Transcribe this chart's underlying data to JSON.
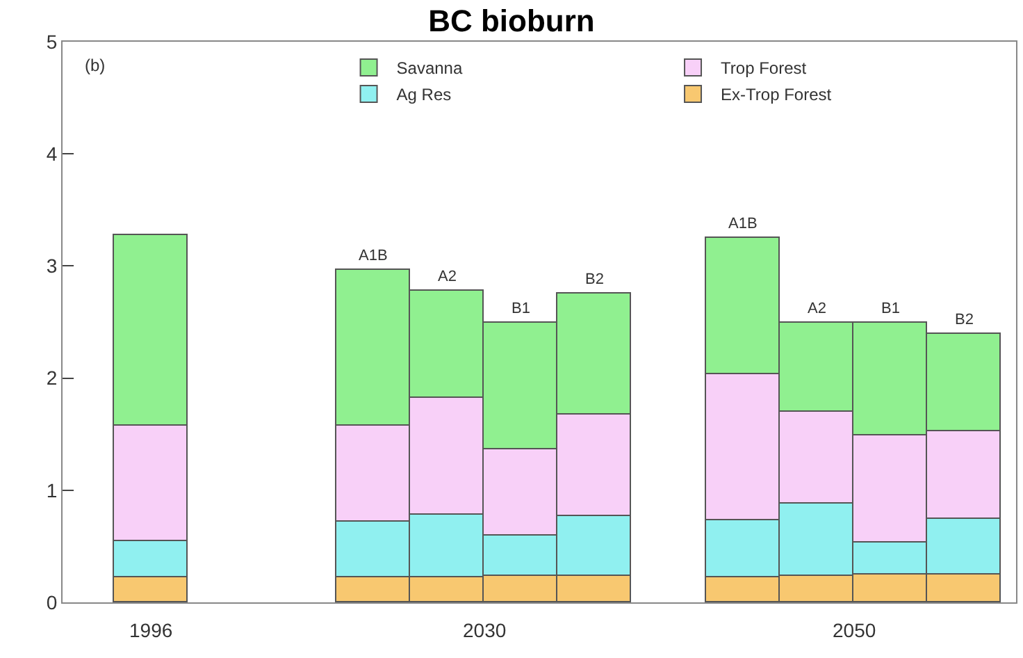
{
  "chart_data": {
    "type": "bar",
    "title": "BC bioburn",
    "stacked": true,
    "categories": [
      null,
      null,
      null,
      "A1B",
      "A2",
      "B1",
      "B2",
      null,
      "A1B",
      "A2",
      "B1",
      "B2"
    ],
    "series": [
      {
        "name": "Ex-Trop Forest",
        "color": "#f8c870",
        "values": [
          0.22,
          null,
          null,
          0.22,
          0.22,
          0.24,
          0.24,
          null,
          0.22,
          0.23,
          0.25,
          0.25
        ]
      },
      {
        "name": "Ag Res",
        "color": "#90f0f0",
        "values": [
          0.33,
          null,
          null,
          0.5,
          0.56,
          0.36,
          0.53,
          null,
          0.51,
          0.65,
          0.28,
          0.5
        ]
      },
      {
        "name": "Trop Forest",
        "color": "#f8d0f8",
        "values": [
          1.02,
          null,
          null,
          0.86,
          1.05,
          0.76,
          0.9,
          null,
          1.31,
          0.82,
          0.96,
          0.77
        ]
      },
      {
        "name": "Savanna",
        "color": "#90f090",
        "values": [
          1.71,
          null,
          null,
          1.38,
          0.95,
          1.14,
          1.08,
          null,
          1.21,
          0.8,
          1.01,
          0.87
        ]
      }
    ],
    "annotations": [
      "(b)",
      "1996",
      "2030",
      "2050"
    ],
    "ylim": [
      0,
      5
    ],
    "yticks": [
      0,
      1,
      2,
      3,
      4,
      5
    ],
    "legend": "top right"
  }
}
